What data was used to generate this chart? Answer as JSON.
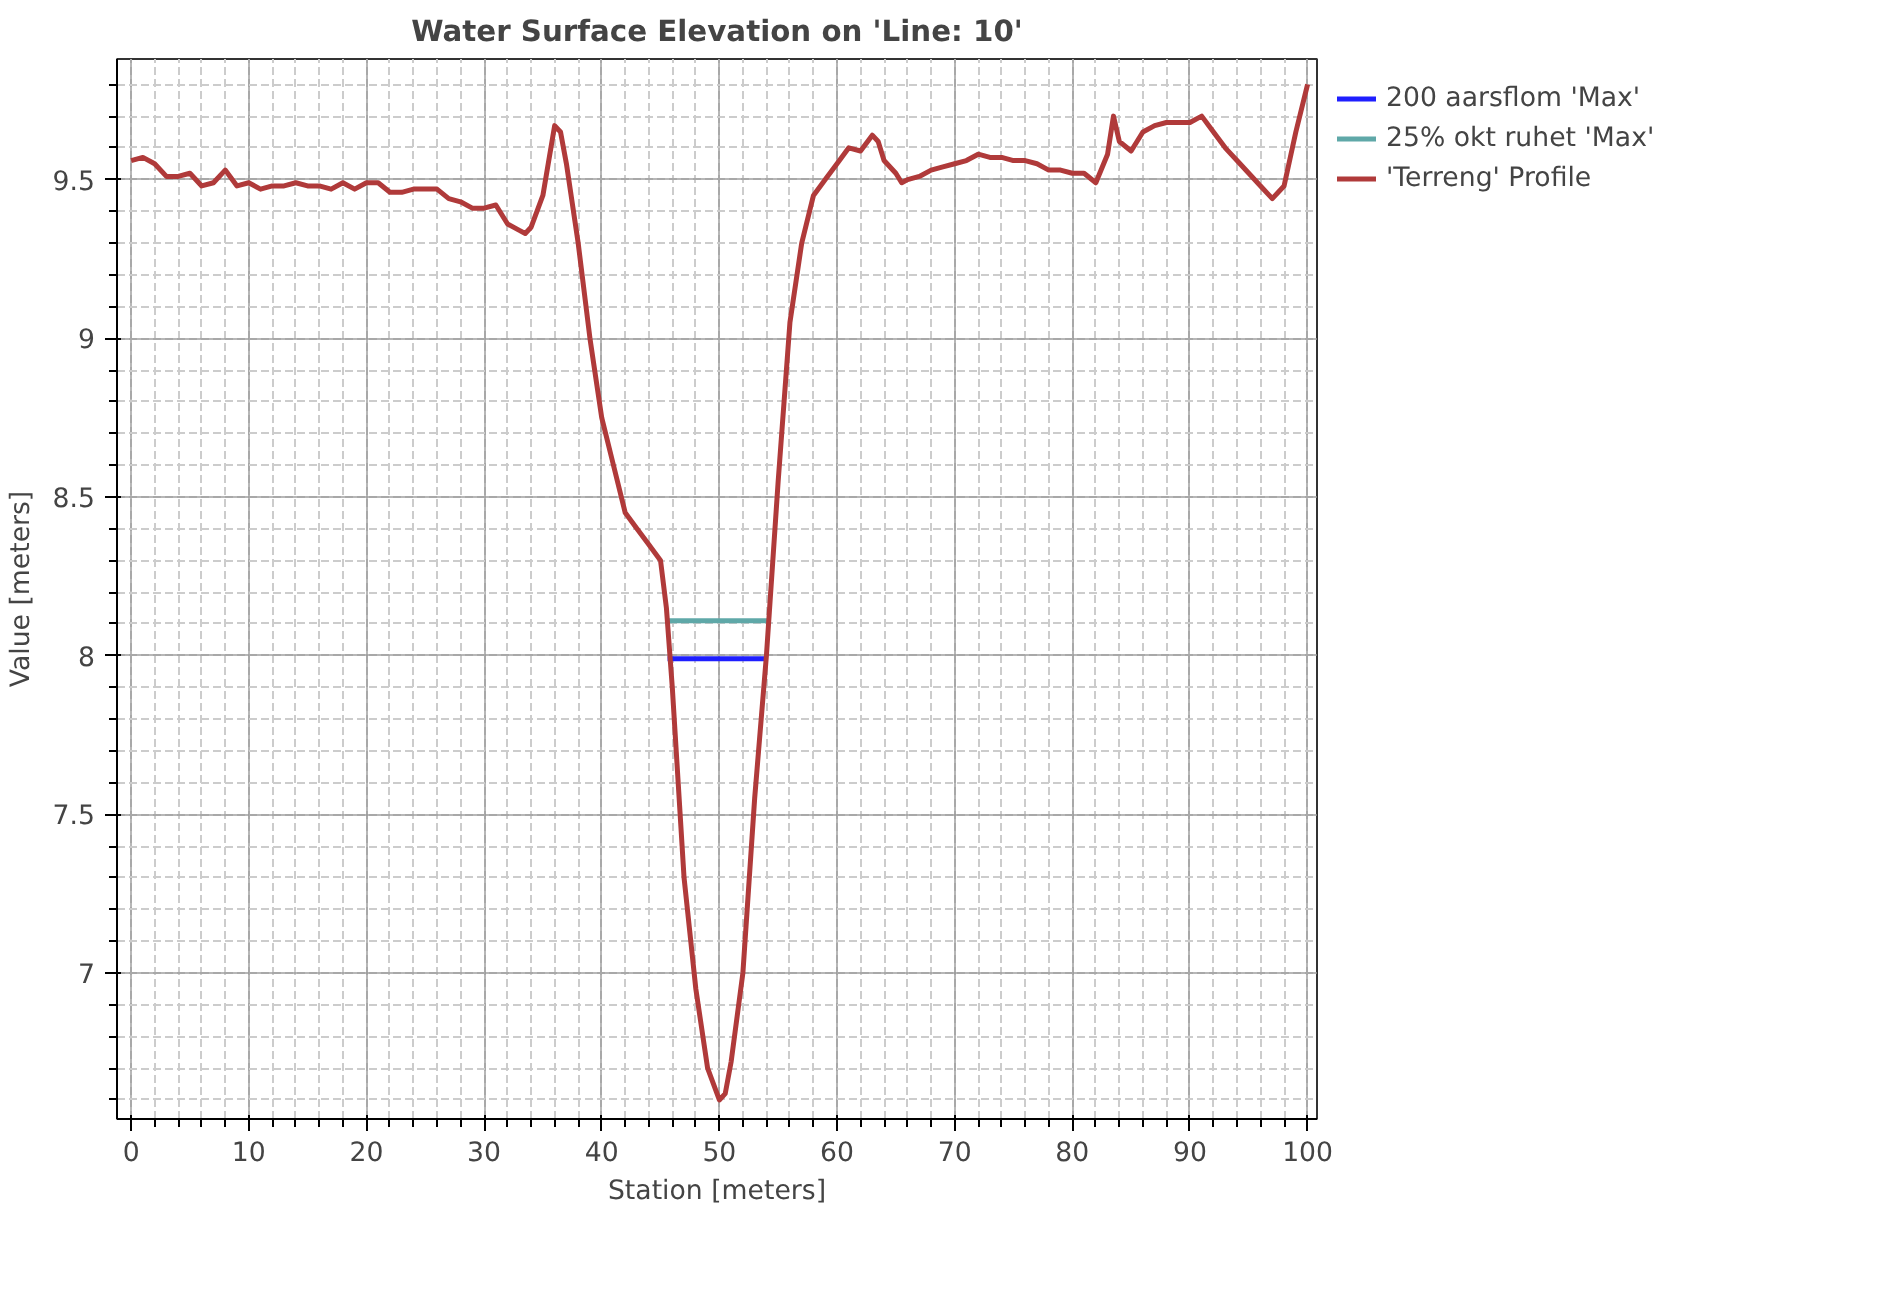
{
  "chart_data": {
    "type": "line",
    "title": "Water Surface Elevation on 'Line: 10'",
    "xlabel": "Station [meters]",
    "ylabel": "Value [meters]",
    "xlim": [
      -1.2,
      100.8
    ],
    "ylim": [
      6.54,
      9.88
    ],
    "xticks": [
      0,
      10,
      20,
      30,
      40,
      50,
      60,
      70,
      80,
      90,
      100
    ],
    "yticks": [
      7,
      7.5,
      8,
      8.5,
      9,
      9.5
    ],
    "grid": true,
    "legend": "top right",
    "line_style": "solid",
    "series": [
      {
        "name": "200 aarsflom 'Max'",
        "color": "#1f1fff",
        "x": [
          45.6,
          53.9
        ],
        "values": [
          7.99,
          7.99
        ]
      },
      {
        "name": "25% okt ruhet 'Max'",
        "color": "#5fa8a8",
        "x": [
          45.4,
          54.1
        ],
        "values": [
          8.11,
          8.11
        ]
      },
      {
        "name": "'Terreng' Profile",
        "color": "#b03a3a",
        "x": [
          0,
          1,
          2,
          3,
          4,
          5,
          6,
          7,
          8,
          9,
          10,
          11,
          12,
          13,
          14,
          15,
          16,
          17,
          18,
          19,
          20,
          21,
          22,
          23,
          24,
          25,
          26,
          27,
          28,
          29,
          30,
          31,
          32,
          33,
          33.5,
          34,
          35,
          36,
          36.5,
          37,
          38,
          39,
          40,
          41,
          42,
          43,
          44,
          45,
          45.5,
          46,
          47,
          48,
          49,
          50,
          50.5,
          51,
          52,
          53,
          54,
          55,
          56,
          57,
          58,
          59,
          60,
          61,
          62,
          63,
          63.5,
          64,
          65,
          65.5,
          66,
          67,
          68,
          69,
          70,
          71,
          72,
          73,
          74,
          75,
          76,
          77,
          78,
          79,
          80,
          81,
          82,
          83,
          83.5,
          84,
          85,
          86,
          87,
          88,
          89,
          90,
          91,
          92,
          93,
          94,
          95,
          96,
          97,
          98,
          99,
          100
        ],
        "values": [
          9.56,
          9.57,
          9.55,
          9.51,
          9.51,
          9.52,
          9.48,
          9.49,
          9.53,
          9.48,
          9.49,
          9.47,
          9.48,
          9.48,
          9.49,
          9.48,
          9.48,
          9.47,
          9.49,
          9.47,
          9.49,
          9.49,
          9.46,
          9.46,
          9.47,
          9.47,
          9.47,
          9.44,
          9.43,
          9.41,
          9.41,
          9.42,
          9.36,
          9.34,
          9.33,
          9.35,
          9.45,
          9.67,
          9.65,
          9.55,
          9.3,
          9.0,
          8.75,
          8.6,
          8.45,
          8.4,
          8.35,
          8.3,
          8.15,
          7.9,
          7.3,
          6.95,
          6.7,
          6.6,
          6.62,
          6.72,
          7.0,
          7.55,
          8.0,
          8.55,
          9.05,
          9.3,
          9.45,
          9.5,
          9.55,
          9.6,
          9.59,
          9.64,
          9.62,
          9.56,
          9.52,
          9.49,
          9.5,
          9.51,
          9.53,
          9.54,
          9.55,
          9.56,
          9.58,
          9.57,
          9.57,
          9.56,
          9.56,
          9.55,
          9.53,
          9.53,
          9.52,
          9.52,
          9.49,
          9.58,
          9.7,
          9.62,
          9.59,
          9.65,
          9.67,
          9.68,
          9.68,
          9.68,
          9.7,
          9.65,
          9.6,
          9.56,
          9.52,
          9.48,
          9.44,
          9.48,
          9.65,
          9.8
        ]
      }
    ]
  }
}
